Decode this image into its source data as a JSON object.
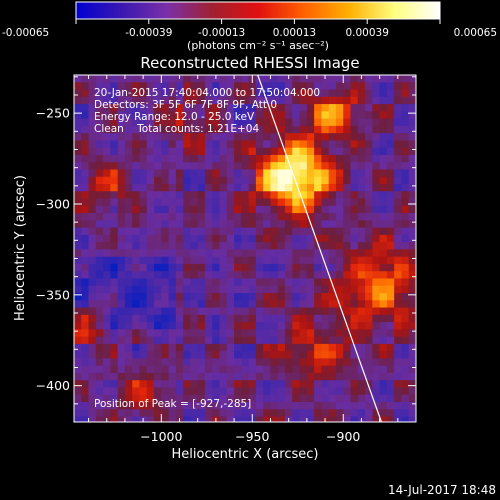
{
  "colorbar": {
    "tick_labels": [
      "-0.00065",
      "-0.00039",
      "-0.00013",
      "0.00013",
      "0.00039",
      "0.00065"
    ],
    "tick_values": [
      -0.00065,
      -0.00039,
      -0.00013,
      0.00013,
      0.00039,
      0.00065
    ],
    "range": [
      -0.00065,
      0.00065
    ],
    "unit_label": "(photons cm⁻² s⁻¹ asec⁻²)",
    "colors": [
      "#0000d0",
      "#3a18b0",
      "#7a30a8",
      "#a02030",
      "#e01010",
      "#ff6000",
      "#ffb000",
      "#ffff80",
      "#ffffff"
    ]
  },
  "chart_data": {
    "type": "heatmap",
    "title": "Reconstructed RHESSI Image",
    "xlabel": "Heliocentric X (arcsec)",
    "ylabel": "Heliocentric Y (arcsec)",
    "xlim": [
      -1048,
      -860
    ],
    "ylim": [
      -420,
      -229
    ],
    "x_ticks": [
      -1000,
      -950,
      -900
    ],
    "x_tick_labels": [
      "−1000",
      "−950",
      "−900"
    ],
    "y_ticks": [
      -250,
      -300,
      -350,
      -400
    ],
    "y_tick_labels": [
      "−250",
      "−300",
      "−350",
      "−400"
    ],
    "annotations": [
      "20-Jan-2015 17:40:04.000 to 17:50:04.000",
      "Detectors: 3F 5F 6F 7F 8F 9F, Att 0",
      "Energy Range: 12.0 - 25.0 keV",
      "Clean    Total counts: 1.21E+04"
    ],
    "peak_label": "Position of Peak = [-927,-285]",
    "peak": [
      -927,
      -285
    ],
    "limb_line": [
      [
        -947,
        -229
      ],
      [
        -879,
        -420
      ]
    ],
    "sources": [
      {
        "x": -927,
        "y": -285,
        "sigma": 14,
        "amp": 1.0
      },
      {
        "x": -905,
        "y": -250,
        "sigma": 10,
        "amp": 0.55
      },
      {
        "x": -880,
        "y": -345,
        "sigma": 16,
        "amp": 0.55
      },
      {
        "x": -915,
        "y": -380,
        "sigma": 14,
        "amp": 0.35
      },
      {
        "x": -1040,
        "y": -365,
        "sigma": 8,
        "amp": 0.45
      },
      {
        "x": -1030,
        "y": -290,
        "sigma": 10,
        "amp": 0.3
      },
      {
        "x": -1010,
        "y": -405,
        "sigma": 10,
        "amp": 0.3
      },
      {
        "x": -985,
        "y": -255,
        "sigma": 10,
        "amp": 0.25
      }
    ]
  },
  "footer": {
    "date": "14-Jul-2017 18:48"
  }
}
